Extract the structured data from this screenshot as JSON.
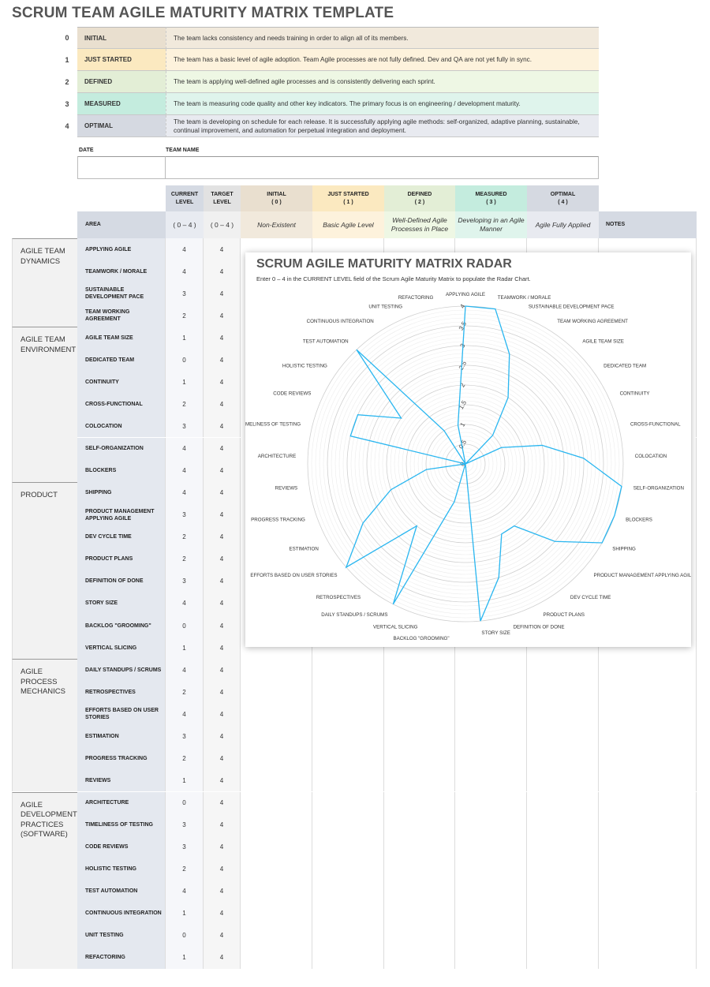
{
  "title": "SCRUM TEAM AGILE MATURITY MATRIX TEMPLATE",
  "levels": [
    {
      "num": "0",
      "name": "INITIAL",
      "desc": "The team lacks consistency and needs training in order to align all of its members.",
      "color": "#e9dfcf",
      "light": "#f1e9dc"
    },
    {
      "num": "1",
      "name": "JUST STARTED",
      "desc": "The team has a basic level of agile adoption. Team Agile processes are not fully defined. Dev and QA are not yet fully in sync.",
      "color": "#fbe9c0",
      "light": "#fdf2dc"
    },
    {
      "num": "2",
      "name": "DEFINED",
      "desc": "The team is applying well-defined agile processes and is consistently delivering each sprint.",
      "color": "#e3eed6",
      "light": "#eef7e4"
    },
    {
      "num": "3",
      "name": "MEASURED",
      "desc": "The team is measuring code quality and other key indicators. The primary focus is on engineering / development maturity.",
      "color": "#c4ecde",
      "light": "#dff4ec"
    },
    {
      "num": "4",
      "name": "OPTIMAL",
      "desc": "The team is developing on schedule for each release. It is successfully applying agile methods: self-organized, adaptive planning, sustainable, continual improvement, and automation for perpetual integration and deployment.",
      "color": "#d5d9e1",
      "light": "#e8eaf0"
    }
  ],
  "form": {
    "date_label": "DATE",
    "team_label": "TEAM NAME",
    "date_value": "",
    "team_value": ""
  },
  "header": {
    "current": "CURRENT\nLEVEL",
    "target": "TARGET\nLEVEL",
    "area": "AREA",
    "range_current": "( 0 – 4 )",
    "range_target": "( 0 – 4 )",
    "notes": "NOTES",
    "levels": [
      {
        "title": "INITIAL\n( 0 )",
        "sub": "Non-Existent"
      },
      {
        "title": "JUST STARTED\n( 1 )",
        "sub": "Basic Agile Level"
      },
      {
        "title": "DEFINED\n( 2 )",
        "sub": "Well-Defined Agile Processes in Place"
      },
      {
        "title": "MEASURED\n( 3 )",
        "sub": "Developing in an Agile Manner"
      },
      {
        "title": "OPTIMAL\n( 4 )",
        "sub": "Agile Fully Applied"
      }
    ]
  },
  "groups": [
    {
      "name": "AGILE TEAM DYNAMICS",
      "rows": [
        [
          "APPLYING AGILE",
          "4",
          "4"
        ],
        [
          "TEAMWORK / MORALE",
          "4",
          "4"
        ],
        [
          "SUSTAINABLE DEVELOPMENT PACE",
          "3",
          "4"
        ],
        [
          "TEAM WORKING AGREEMENT",
          "2",
          "4"
        ]
      ]
    },
    {
      "name": "AGILE TEAM ENVIRONMENT",
      "rows": [
        [
          "AGILE TEAM SIZE",
          "1",
          "4"
        ],
        [
          "DEDICATED TEAM",
          "0",
          "4"
        ],
        [
          "CONTINUITY",
          "1",
          "4"
        ],
        [
          "CROSS-FUNCTIONAL",
          "2",
          "4"
        ],
        [
          "COLOCATION",
          "3",
          "4"
        ],
        [
          "SELF-ORGANIZATION",
          "4",
          "4"
        ],
        [
          "BLOCKERS",
          "4",
          "4"
        ]
      ]
    },
    {
      "name": "PRODUCT",
      "rows": [
        [
          "SHIPPING",
          "4",
          "4"
        ],
        [
          "PRODUCT MANAGEMENT APPLYING AGILE",
          "3",
          "4"
        ],
        [
          "DEV CYCLE TIME",
          "2",
          "4"
        ],
        [
          "PRODUCT PLANS",
          "2",
          "4"
        ],
        [
          "DEFINITION OF DONE",
          "3",
          "4"
        ],
        [
          "STORY SIZE",
          "4",
          "4"
        ],
        [
          "BACKLOG \"GROOMING\"",
          "0",
          "4"
        ],
        [
          "VERTICAL SLICING",
          "1",
          "4"
        ]
      ]
    },
    {
      "name": "AGILE PROCESS MECHANICS",
      "rows": [
        [
          "DAILY STANDUPS / SCRUMS",
          "4",
          "4"
        ],
        [
          "RETROSPECTIVES",
          "2",
          "4"
        ],
        [
          "EFFORTS BASED ON USER STORIES",
          "4",
          "4"
        ],
        [
          "ESTIMATION",
          "3",
          "4"
        ],
        [
          "PROGRESS TRACKING",
          "2",
          "4"
        ],
        [
          "REVIEWS",
          "1",
          "4"
        ]
      ]
    },
    {
      "name": "AGILE DEVELOPMENT PRACTICES (SOFTWARE)",
      "rows": [
        [
          "ARCHITECTURE",
          "0",
          "4"
        ],
        [
          "TIMELINESS OF TESTING",
          "3",
          "4"
        ],
        [
          "CODE REVIEWS",
          "3",
          "4"
        ],
        [
          "HOLISTIC TESTING",
          "2",
          "4"
        ],
        [
          "TEST AUTOMATION",
          "4",
          "4"
        ],
        [
          "CONTINUOUS INTEGRATION",
          "1",
          "4"
        ],
        [
          "UNIT TESTING",
          "0",
          "4"
        ],
        [
          "REFACTORING",
          "1",
          "4"
        ]
      ]
    }
  ],
  "chart_data": {
    "type": "radar",
    "title": "SCRUM AGILE MATURITY MATRIX RADAR",
    "subtitle": "Enter  0 – 4  in the CURRENT LEVEL field of the Scrum Agile Maturity Matrix to populate the Radar Chart.",
    "categories": [
      "APPLYING AGILE",
      "TEAMWORK / MORALE",
      "SUSTAINABLE DEVELOPMENT PACE",
      "TEAM WORKING AGREEMENT",
      "AGILE TEAM SIZE",
      "DEDICATED TEAM",
      "CONTINUITY",
      "CROSS-FUNCTIONAL",
      "COLOCATION",
      "SELF-ORGANIZATION",
      "BLOCKERS",
      "SHIPPING",
      "PRODUCT MANAGEMENT APPLYING AGILE",
      "DEV CYCLE TIME",
      "PRODUCT PLANS",
      "DEFINITION OF DONE",
      "STORY SIZE",
      "BACKLOG \"GROOMING\"",
      "VERTICAL SLICING",
      "DAILY STANDUPS / SCRUMS",
      "RETROSPECTIVES",
      "EFFORTS BASED ON USER STORIES",
      "ESTIMATION",
      "PROGRESS TRACKING",
      "REVIEWS",
      "ARCHITECTURE",
      "TIMELINESS OF TESTING",
      "CODE REVIEWS",
      "HOLISTIC TESTING",
      "TEST AUTOMATION",
      "CONTINUOUS INTEGRATION",
      "UNIT TESTING",
      "REFACTORING"
    ],
    "values": [
      4,
      4,
      3,
      2,
      1,
      0,
      1,
      2,
      3,
      4,
      4,
      4,
      3,
      2,
      2,
      3,
      4,
      0,
      1,
      4,
      2,
      4,
      3,
      2,
      1,
      0,
      3,
      3,
      2,
      4,
      1,
      0,
      1
    ],
    "ticks": [
      "0",
      "0.5",
      "1",
      "1.5",
      "2",
      "2.5",
      "3",
      "3.5",
      "4"
    ],
    "range": [
      0,
      4
    ],
    "line_color": "#29b6f0",
    "grid": true
  }
}
